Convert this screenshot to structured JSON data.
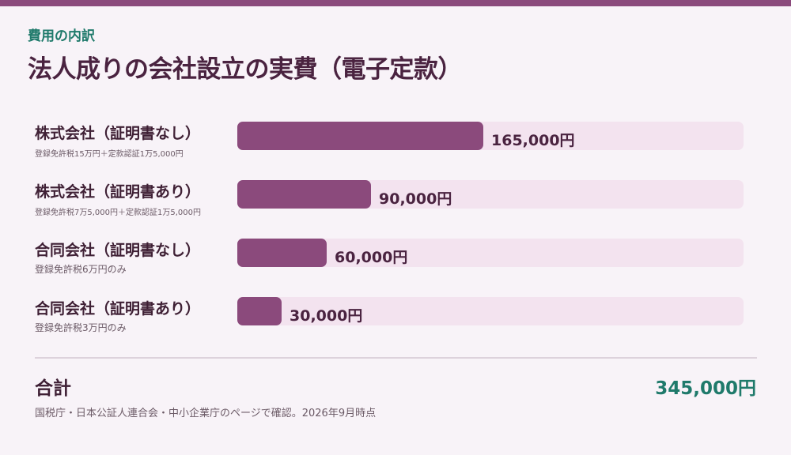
{
  "header": {
    "eyebrow": "費用の内訳",
    "title": "法人成りの会社設立の実費（電子定款）"
  },
  "chart_data": {
    "type": "bar",
    "orientation": "horizontal",
    "categories": [
      "株式会社（証明書なし）",
      "株式会社（証明書あり）",
      "合同会社（証明書なし）",
      "合同会社（証明書あり）"
    ],
    "descriptions": [
      "登録免許税15万円＋定款認証1万5,000円",
      "登録免許税7万5,000円＋定款認証1万5,000円",
      "登録免許税6万円のみ",
      "登録免許税3万円のみ"
    ],
    "values": [
      165000,
      90000,
      60000,
      30000
    ],
    "value_labels": [
      "165,000円",
      "90,000円",
      "60,000円",
      "30,000円"
    ],
    "xlim": [
      0,
      340000
    ],
    "colors": {
      "bar": "#8b4a7c",
      "track": "#f3e3ef"
    }
  },
  "total": {
    "label": "合計",
    "value": "345,000円"
  },
  "footnote": "国税庁・日本公証人連合会・中小企業庁のページで確認。2026年9月時点"
}
